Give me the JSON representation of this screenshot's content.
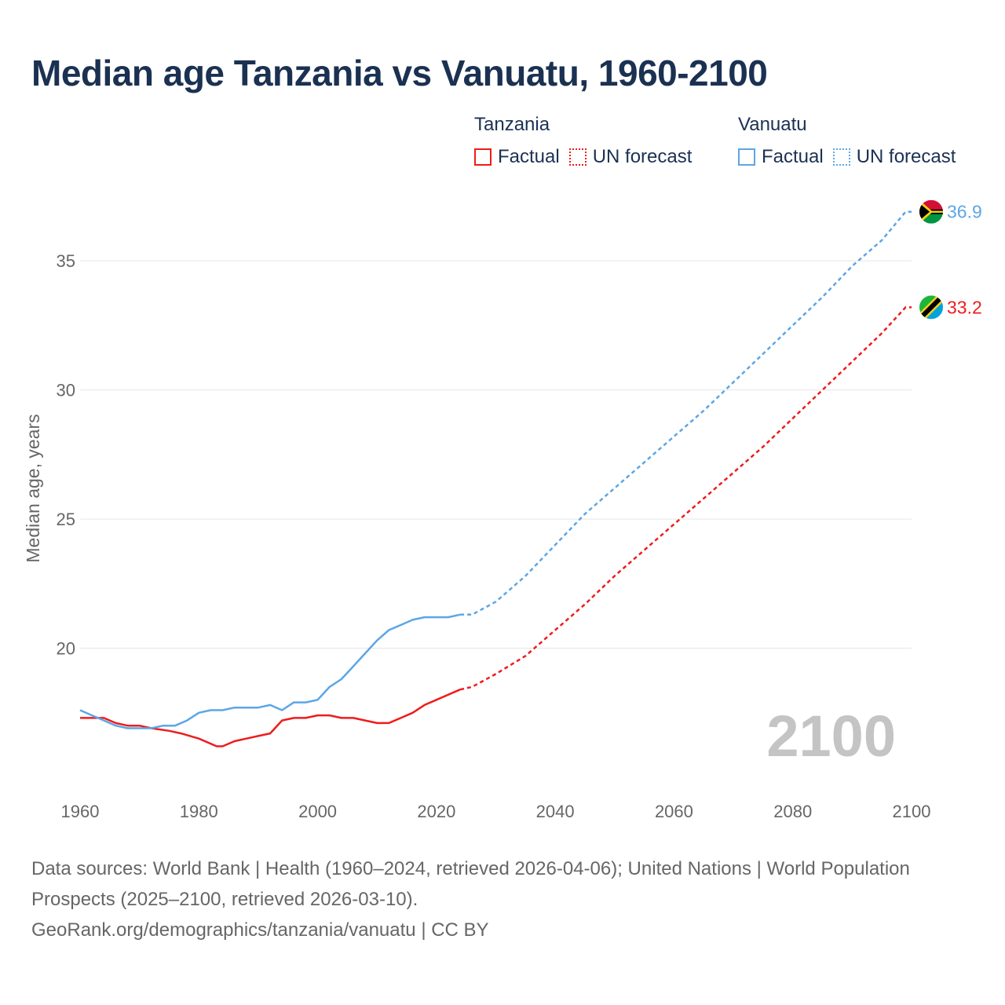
{
  "title": "Median age Tanzania vs Vanuatu, 1960-2100",
  "legend": {
    "tanzania": {
      "name": "Tanzania",
      "factual": "Factual",
      "forecast": "UN forecast",
      "color": "#ee1c1c"
    },
    "vanuatu": {
      "name": "Vanuatu",
      "factual": "Factual",
      "forecast": "UN forecast",
      "color": "#5ca6e6"
    }
  },
  "sources": {
    "line1": "Data sources: World Bank | Health (1960–2024, retrieved 2026-04-06); United Nations | World Population Prospects (2025–2100, retrieved 2026-03-10).",
    "line2": "GeoRank.org/demographics/tanzania/vanuatu | CC BY"
  },
  "chart_data": {
    "type": "line",
    "title": "Median age Tanzania vs Vanuatu, 1960-2100",
    "xlabel": "",
    "ylabel": "Median age, years",
    "xlim": [
      1960,
      2100
    ],
    "ylim": [
      15,
      37.5
    ],
    "x_ticks": [
      1960,
      1980,
      2000,
      2020,
      2040,
      2060,
      2080,
      2100
    ],
    "y_ticks": [
      20,
      25,
      30,
      35
    ],
    "grid": "horizontal",
    "year_watermark": "2100",
    "factual_end_year": 2024,
    "series": [
      {
        "name": "Tanzania",
        "color": "#ee1c1c",
        "end_label": "33.2",
        "points": [
          [
            1960,
            17.3
          ],
          [
            1964,
            17.3
          ],
          [
            1966,
            17.1
          ],
          [
            1968,
            17.0
          ],
          [
            1970,
            17.0
          ],
          [
            1972,
            16.9
          ],
          [
            1975,
            16.8
          ],
          [
            1977,
            16.7
          ],
          [
            1980,
            16.5
          ],
          [
            1983,
            16.2
          ],
          [
            1984,
            16.2
          ],
          [
            1986,
            16.4
          ],
          [
            1988,
            16.5
          ],
          [
            1990,
            16.6
          ],
          [
            1992,
            16.7
          ],
          [
            1994,
            17.2
          ],
          [
            1996,
            17.3
          ],
          [
            1998,
            17.3
          ],
          [
            2000,
            17.4
          ],
          [
            2002,
            17.4
          ],
          [
            2004,
            17.3
          ],
          [
            2006,
            17.3
          ],
          [
            2008,
            17.2
          ],
          [
            2010,
            17.1
          ],
          [
            2012,
            17.1
          ],
          [
            2014,
            17.3
          ],
          [
            2016,
            17.5
          ],
          [
            2018,
            17.8
          ],
          [
            2020,
            18.0
          ],
          [
            2024,
            18.4
          ],
          [
            2026,
            18.5
          ],
          [
            2030,
            19.0
          ],
          [
            2035,
            19.7
          ],
          [
            2040,
            20.7
          ],
          [
            2045,
            21.7
          ],
          [
            2050,
            22.8
          ],
          [
            2055,
            23.8
          ],
          [
            2060,
            24.8
          ],
          [
            2065,
            25.8
          ],
          [
            2070,
            26.8
          ],
          [
            2075,
            27.8
          ],
          [
            2080,
            28.9
          ],
          [
            2085,
            30.0
          ],
          [
            2090,
            31.1
          ],
          [
            2095,
            32.2
          ],
          [
            2099,
            33.2
          ],
          [
            2100,
            33.2
          ]
        ]
      },
      {
        "name": "Vanuatu",
        "color": "#5ca6e6",
        "end_label": "36.9",
        "points": [
          [
            1960,
            17.6
          ],
          [
            1962,
            17.4
          ],
          [
            1964,
            17.2
          ],
          [
            1966,
            17.0
          ],
          [
            1968,
            16.9
          ],
          [
            1970,
            16.9
          ],
          [
            1972,
            16.9
          ],
          [
            1974,
            17.0
          ],
          [
            1976,
            17.0
          ],
          [
            1978,
            17.2
          ],
          [
            1980,
            17.5
          ],
          [
            1982,
            17.6
          ],
          [
            1984,
            17.6
          ],
          [
            1986,
            17.7
          ],
          [
            1988,
            17.7
          ],
          [
            1990,
            17.7
          ],
          [
            1992,
            17.8
          ],
          [
            1994,
            17.6
          ],
          [
            1996,
            17.9
          ],
          [
            1998,
            17.9
          ],
          [
            2000,
            18.0
          ],
          [
            2002,
            18.5
          ],
          [
            2004,
            18.8
          ],
          [
            2006,
            19.3
          ],
          [
            2008,
            19.8
          ],
          [
            2010,
            20.3
          ],
          [
            2012,
            20.7
          ],
          [
            2014,
            20.9
          ],
          [
            2016,
            21.1
          ],
          [
            2018,
            21.2
          ],
          [
            2020,
            21.2
          ],
          [
            2022,
            21.2
          ],
          [
            2024,
            21.3
          ],
          [
            2026,
            21.3
          ],
          [
            2030,
            21.8
          ],
          [
            2035,
            22.8
          ],
          [
            2040,
            24.0
          ],
          [
            2045,
            25.2
          ],
          [
            2050,
            26.2
          ],
          [
            2055,
            27.2
          ],
          [
            2060,
            28.2
          ],
          [
            2065,
            29.2
          ],
          [
            2070,
            30.3
          ],
          [
            2075,
            31.4
          ],
          [
            2080,
            32.5
          ],
          [
            2085,
            33.6
          ],
          [
            2090,
            34.8
          ],
          [
            2095,
            35.8
          ],
          [
            2099,
            36.9
          ],
          [
            2100,
            36.9
          ]
        ]
      }
    ]
  }
}
